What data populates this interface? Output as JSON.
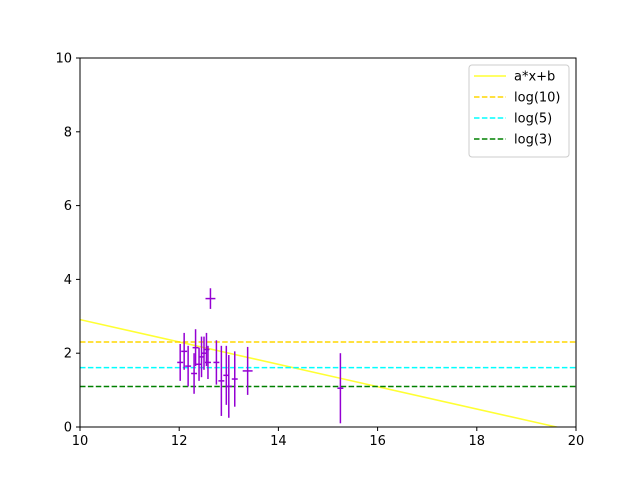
{
  "chart_data": {
    "type": "scatter",
    "xlim": [
      10,
      20
    ],
    "ylim": [
      0,
      10
    ],
    "x_ticks": [
      "10",
      "12",
      "14",
      "16",
      "18",
      "20"
    ],
    "y_ticks": [
      "0",
      "2",
      "4",
      "6",
      "8",
      "10"
    ],
    "grid": false,
    "legend_position": "top-right",
    "points": {
      "color": "#9400d3",
      "data": [
        {
          "x": 12.02,
          "y": 1.75,
          "yerr": 0.5,
          "xerr": 0.06
        },
        {
          "x": 12.1,
          "y": 2.05,
          "yerr": 0.5,
          "xerr": 0.06
        },
        {
          "x": 12.18,
          "y": 1.65,
          "yerr": 0.55,
          "xerr": 0.06
        },
        {
          "x": 12.3,
          "y": 1.45,
          "yerr": 0.55,
          "xerr": 0.06
        },
        {
          "x": 12.33,
          "y": 2.15,
          "yerr": 0.5,
          "xerr": 0.06
        },
        {
          "x": 12.4,
          "y": 1.7,
          "yerr": 0.45,
          "xerr": 0.06
        },
        {
          "x": 12.45,
          "y": 1.9,
          "yerr": 0.55,
          "xerr": 0.06
        },
        {
          "x": 12.5,
          "y": 2.0,
          "yerr": 0.45,
          "xerr": 0.06
        },
        {
          "x": 12.55,
          "y": 2.1,
          "yerr": 0.45,
          "xerr": 0.06
        },
        {
          "x": 12.58,
          "y": 1.75,
          "yerr": 0.45,
          "xerr": 0.06
        },
        {
          "x": 12.63,
          "y": 3.48,
          "yerr": 0.28,
          "xerr": 0.1
        },
        {
          "x": 12.75,
          "y": 1.75,
          "yerr": 0.6,
          "xerr": 0.06
        },
        {
          "x": 12.85,
          "y": 1.25,
          "yerr": 0.95,
          "xerr": 0.06
        },
        {
          "x": 12.95,
          "y": 1.4,
          "yerr": 0.8,
          "xerr": 0.06
        },
        {
          "x": 13.0,
          "y": 1.1,
          "yerr": 0.85,
          "xerr": 0.06
        },
        {
          "x": 13.12,
          "y": 1.3,
          "yerr": 0.75,
          "xerr": 0.06
        },
        {
          "x": 13.38,
          "y": 1.52,
          "yerr": 0.65,
          "xerr": 0.1
        },
        {
          "x": 15.25,
          "y": 1.05,
          "yerr": 0.95,
          "xerr": 0.06
        }
      ]
    },
    "series": [
      {
        "name": "a*x+b",
        "style": "solid",
        "color": "#ffff33",
        "x": [
          10,
          20
        ],
        "y": [
          2.91,
          -0.12
        ]
      },
      {
        "name": "log(10)",
        "style": "dashed",
        "color": "#ffd700",
        "x": [
          10,
          20
        ],
        "y": [
          2.3026,
          2.3026
        ]
      },
      {
        "name": "log(5)",
        "style": "dashed",
        "color": "#00ffff",
        "x": [
          10,
          20
        ],
        "y": [
          1.6094,
          1.6094
        ]
      },
      {
        "name": "log(3)",
        "style": "dashed",
        "color": "#008000",
        "x": [
          10,
          20
        ],
        "y": [
          1.0986,
          1.0986
        ]
      }
    ]
  }
}
